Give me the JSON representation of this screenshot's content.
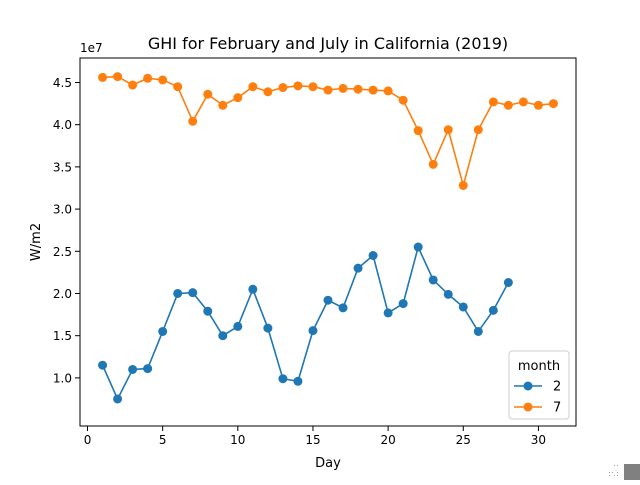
{
  "chart_data": {
    "type": "line",
    "title": "GHI for February and July in California (2019)",
    "xlabel": "Day",
    "ylabel": "W/m2",
    "y_offset_text": "1e7",
    "xlim": [
      -0.5,
      32.5
    ],
    "ylim": [
      0.43,
      4.79
    ],
    "xticks": [
      0,
      5,
      10,
      15,
      20,
      25,
      30
    ],
    "xtick_labels": [
      "0",
      "5",
      "10",
      "15",
      "20",
      "25",
      "30"
    ],
    "yticks": [
      1.0,
      1.5,
      2.0,
      2.5,
      3.0,
      3.5,
      4.0,
      4.5
    ],
    "ytick_labels": [
      "1.0",
      "1.5",
      "2.0",
      "2.5",
      "3.0",
      "3.5",
      "4.0",
      "4.5"
    ],
    "grid": false,
    "legend": {
      "title": "month",
      "placement": "lower-right"
    },
    "series": [
      {
        "name": "2",
        "color": "#1f77b4",
        "x": [
          1,
          2,
          3,
          4,
          5,
          6,
          7,
          8,
          9,
          10,
          11,
          12,
          13,
          14,
          15,
          16,
          17,
          18,
          19,
          20,
          21,
          22,
          23,
          24,
          25,
          26,
          27,
          28
        ],
        "y": [
          1.15,
          0.75,
          1.1,
          1.11,
          1.55,
          2.0,
          2.01,
          1.79,
          1.5,
          1.61,
          2.05,
          1.59,
          0.99,
          0.96,
          1.56,
          1.92,
          1.83,
          2.3,
          2.45,
          1.77,
          1.88,
          2.55,
          2.16,
          1.99,
          1.84,
          1.55,
          1.8,
          2.13
        ]
      },
      {
        "name": "7",
        "color": "#ff7f0e",
        "x": [
          1,
          2,
          3,
          4,
          5,
          6,
          7,
          8,
          9,
          10,
          11,
          12,
          13,
          14,
          15,
          16,
          17,
          18,
          19,
          20,
          21,
          22,
          23,
          24,
          25,
          26,
          27,
          28,
          29,
          30,
          31
        ],
        "y": [
          4.56,
          4.57,
          4.47,
          4.55,
          4.53,
          4.45,
          4.04,
          4.36,
          4.23,
          4.32,
          4.45,
          4.39,
          4.44,
          4.46,
          4.45,
          4.41,
          4.43,
          4.42,
          4.41,
          4.4,
          4.29,
          3.93,
          3.53,
          3.94,
          3.28,
          3.94,
          4.27,
          4.23,
          4.27,
          4.23,
          4.25
        ]
      }
    ]
  },
  "window": {
    "resize_grip_icon": "resize-grip-icon"
  }
}
